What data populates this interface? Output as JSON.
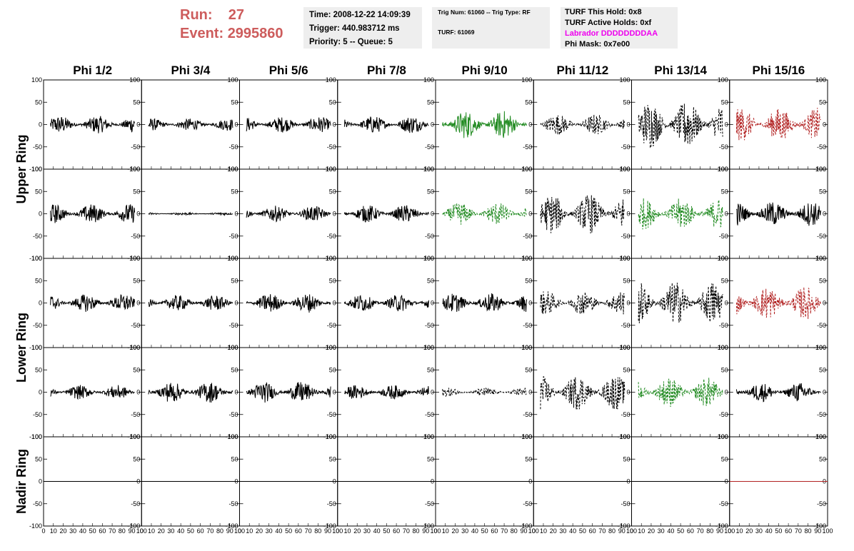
{
  "header": {
    "run_label": "Run:",
    "run_value": "27",
    "event_label": "Event:",
    "event_value": "2995860",
    "time_line": "Time: 2008-12-22 14:09:39",
    "trigger_line": "Trigger: 440.983712 ms",
    "priority_line": "Priority: 5 -- Queue: 5",
    "trig_line": "Trig Num: 61060 -- Trig Type: RF",
    "turf_line": "TURF: 61069",
    "turf_hold": "TURF This Hold: 0x8",
    "turf_active": "TURF Active Holds: 0xf",
    "labrador": "Labrador DDDDDDDDAA",
    "phi_mask": "Phi Mask: 0x7e00",
    "colors": {
      "run_event": "#cd5c5c",
      "labrador": "#ee00ee",
      "box_bg": "#eeeeee"
    }
  },
  "chart_data": {
    "type": "line",
    "columns": [
      "Phi 1/2",
      "Phi 3/4",
      "Phi 5/6",
      "Phi 7/8",
      "Phi 9/10",
      "Phi 11/12",
      "Phi 13/14",
      "Phi 15/16"
    ],
    "rings": [
      "Upper Ring",
      "Lower Ring",
      "Nadir Ring"
    ],
    "xlim": [
      0,
      100
    ],
    "ylim": [
      -100,
      100
    ],
    "x_ticks": [
      0,
      10,
      20,
      30,
      40,
      50,
      60,
      70,
      80,
      90,
      100
    ],
    "y_ticks": [
      -100,
      -50,
      0,
      50,
      100
    ],
    "colors": {
      "black": "#000000",
      "green": "#228b22",
      "red": "#b22222"
    },
    "rows": [
      {
        "ring": "Upper Ring",
        "cells": [
          {
            "color": "black",
            "style": "solid",
            "amp": 20
          },
          {
            "color": "black",
            "style": "solid",
            "amp": 14
          },
          {
            "color": "black",
            "style": "solid",
            "amp": 18
          },
          {
            "color": "black",
            "style": "solid",
            "amp": 20
          },
          {
            "color": "green",
            "style": "solid",
            "amp": 32
          },
          {
            "color": "black",
            "style": "dashed",
            "amp": 24
          },
          {
            "color": "black",
            "style": "dashed",
            "amp": 55
          },
          {
            "color": "red",
            "style": "dashed",
            "amp": 38
          }
        ]
      },
      {
        "ring": "Upper Ring",
        "cells": [
          {
            "color": "black",
            "style": "solid",
            "amp": 22
          },
          {
            "color": "black",
            "style": "solid",
            "amp": 3
          },
          {
            "color": "black",
            "style": "solid",
            "amp": 18
          },
          {
            "color": "black",
            "style": "solid",
            "amp": 20
          },
          {
            "color": "green",
            "style": "dashed",
            "amp": 26
          },
          {
            "color": "black",
            "style": "dashed",
            "amp": 45
          },
          {
            "color": "green",
            "style": "dashed",
            "amp": 36
          },
          {
            "color": "black",
            "style": "solid",
            "amp": 28
          }
        ]
      },
      {
        "ring": "Lower Ring",
        "cells": [
          {
            "color": "black",
            "style": "solid",
            "amp": 20
          },
          {
            "color": "black",
            "style": "solid",
            "amp": 18
          },
          {
            "color": "black",
            "style": "solid",
            "amp": 22
          },
          {
            "color": "black",
            "style": "solid",
            "amp": 20
          },
          {
            "color": "black",
            "style": "solid",
            "amp": 22
          },
          {
            "color": "black",
            "style": "dashed",
            "amp": 28
          },
          {
            "color": "black",
            "style": "dashed",
            "amp": 50
          },
          {
            "color": "red",
            "style": "dashed",
            "amp": 38
          }
        ]
      },
      {
        "ring": "Lower Ring",
        "cells": [
          {
            "color": "black",
            "style": "solid",
            "amp": 16
          },
          {
            "color": "black",
            "style": "solid",
            "amp": 24
          },
          {
            "color": "black",
            "style": "solid",
            "amp": 24
          },
          {
            "color": "black",
            "style": "solid",
            "amp": 16
          },
          {
            "color": "black",
            "style": "dashed",
            "amp": 10
          },
          {
            "color": "black",
            "style": "dashed",
            "amp": 40
          },
          {
            "color": "green",
            "style": "dashed",
            "amp": 34
          },
          {
            "color": "black",
            "style": "solid",
            "amp": 22
          }
        ]
      },
      {
        "ring": "Nadir Ring",
        "cells": [
          {
            "color": "black",
            "style": "flat",
            "amp": 0
          },
          {
            "color": "black",
            "style": "flat",
            "amp": 0
          },
          {
            "color": "black",
            "style": "flat",
            "amp": 0
          },
          {
            "color": "black",
            "style": "flat",
            "amp": 0
          },
          {
            "color": "black",
            "style": "flat",
            "amp": 0
          },
          {
            "color": "black",
            "style": "flat",
            "amp": 0
          },
          {
            "color": "black",
            "style": "flat",
            "amp": 0
          },
          {
            "color": "red",
            "style": "flat",
            "amp": 0
          }
        ]
      }
    ]
  }
}
